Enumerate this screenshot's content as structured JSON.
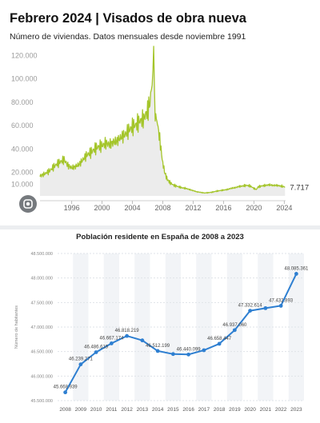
{
  "colors": {
    "line_green": "#a4c52a",
    "area_fill": "#ececec",
    "line_blue": "#2e7fd1",
    "lens_bg": "#5f6368"
  },
  "icons": {
    "lens": "google-lens-icon"
  },
  "chart_data": [
    {
      "type": "area",
      "title": "Febrero 2024 | Visados de obra nueva",
      "subtitle": "Número de viviendas. Datos mensuales desde noviembre 1991",
      "xlabel": "",
      "ylabel": "",
      "x_ticks": [
        "1996",
        "2000",
        "2004",
        "2008",
        "2012",
        "2016",
        "2020",
        "2024"
      ],
      "y_ticks": [
        "10.000",
        "20.000",
        "40.000",
        "60.000",
        "80.000",
        "100.000",
        "120.000"
      ],
      "ylim": [
        0,
        125000
      ],
      "xlim": [
        1991.83,
        2024.17
      ],
      "grid": false,
      "last_value_label": "7.717",
      "series": [
        {
          "x": [
            1991.83,
            1992.5,
            1993,
            1993.5,
            1994,
            1994.5,
            1995,
            1995.5,
            1996,
            1996.5,
            1997,
            1997.5,
            1998,
            1998.5,
            1999,
            1999.5,
            2000,
            2000.5,
            2001,
            2001.5,
            2002,
            2002.5,
            2003,
            2003.5,
            2004,
            2004.5,
            2005,
            2005.5,
            2006,
            2006.3,
            2006.5,
            2006.7,
            2006.8,
            2007,
            2007.3,
            2007.6,
            2008,
            2008.3,
            2008.6,
            2009,
            2009.5,
            2010,
            2010.5,
            2011,
            2011.5,
            2012,
            2012.5,
            2013,
            2013.5,
            2014,
            2014.5,
            2015,
            2015.5,
            2016,
            2016.5,
            2017,
            2017.5,
            2018,
            2018.5,
            2019,
            2019.5,
            2020,
            2020.3,
            2020.5,
            2021,
            2021.5,
            2022,
            2022.5,
            2023,
            2023.5,
            2024.1
          ],
          "y": [
            17000,
            19000,
            21000,
            24000,
            27000,
            29000,
            31000,
            26000,
            24000,
            25000,
            27000,
            31000,
            35000,
            37000,
            40000,
            42000,
            43000,
            45000,
            44000,
            46000,
            47000,
            50000,
            52000,
            56000,
            59000,
            61000,
            64000,
            66000,
            73000,
            80000,
            90000,
            105000,
            122000,
            70000,
            62000,
            48000,
            28000,
            19000,
            14000,
            11000,
            9000,
            8000,
            7000,
            6500,
            5500,
            4500,
            3500,
            3000,
            2500,
            2800,
            3200,
            4000,
            4500,
            5000,
            5500,
            6500,
            7000,
            8000,
            8500,
            9000,
            8500,
            6500,
            5500,
            7500,
            8500,
            9000,
            9500,
            9000,
            9000,
            8500,
            7717
          ]
        }
      ]
    },
    {
      "type": "line",
      "title": "Población residente en España de 2008 a 2023",
      "xlabel": "",
      "ylabel": "Número de habitantes",
      "ylim": [
        45500000,
        48500000
      ],
      "y_ticks": [
        "45.500.000",
        "46.000.000",
        "46.500.000",
        "47.000.000",
        "47.500.000",
        "48.000.000",
        "48.500.000"
      ],
      "grid": true,
      "categories": [
        "2008",
        "2009",
        "2010",
        "2011",
        "2012",
        "2013",
        "2014",
        "2015",
        "2016",
        "2017",
        "2018",
        "2019",
        "2020",
        "2021",
        "2022",
        "2023"
      ],
      "series": [
        {
          "values": [
            45668939,
            46239271,
            46486619,
            46667174,
            46818219,
            46727890,
            46512199,
            46449565,
            46440099,
            46527039,
            46658447,
            46937060,
            47332614,
            47385107,
            47432893,
            48085361
          ]
        }
      ],
      "data_labels": [
        "45.668.939",
        "46.239.271",
        "46.486.619",
        "46.667.174",
        "46.818.219",
        "",
        "46.512.199",
        "",
        "46.440.099",
        "",
        "46.658.447",
        "46.937.060",
        "47.332.614",
        "",
        "47.432.893",
        "48.085.361"
      ]
    }
  ]
}
